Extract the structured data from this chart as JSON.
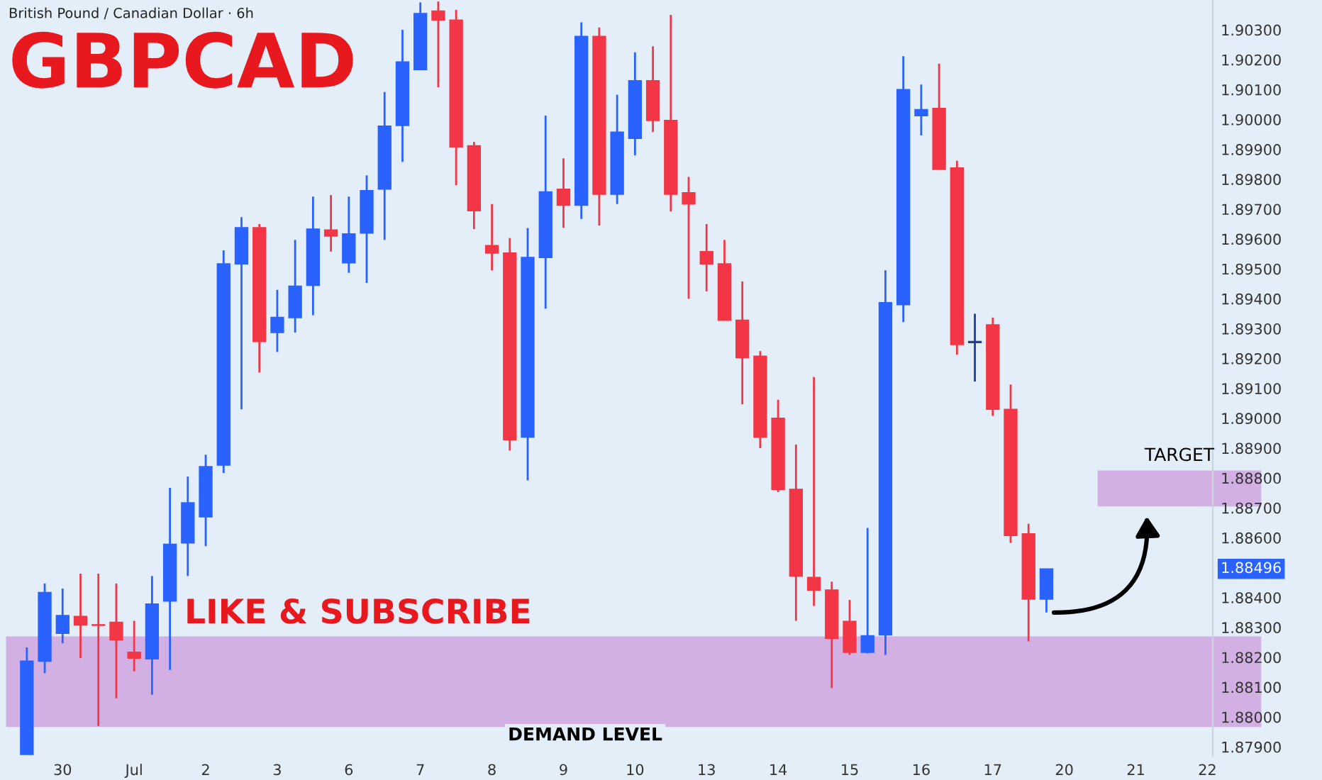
{
  "chart_data": {
    "type": "candlestick",
    "title": "GBPCAD",
    "subtitle": "British Pound / Canadian Dollar · 6h",
    "categories": [
      null,
      null,
      "30",
      null,
      null,
      null,
      "Jul",
      null,
      null,
      null,
      "2",
      null,
      null,
      null,
      "3",
      null,
      null,
      null,
      "6",
      null,
      null,
      null,
      "7",
      null,
      null,
      null,
      "8",
      null,
      null,
      null,
      "9",
      null,
      null,
      null,
      "10",
      null,
      null,
      null,
      "13",
      null,
      null,
      null,
      "14",
      null,
      null,
      null,
      "15",
      null,
      null,
      null,
      "16",
      null,
      null,
      null,
      "17",
      null,
      null,
      null,
      "20",
      null,
      null,
      null,
      "21",
      null,
      null,
      null,
      "22"
    ],
    "ohlc": [
      [
        1.87875,
        1.88233,
        1.87875,
        1.88187
      ],
      [
        1.88187,
        1.88447,
        1.88147,
        1.88417
      ],
      [
        1.8828,
        1.8843,
        1.88247,
        1.8834
      ],
      [
        1.88337,
        1.8848,
        1.88197,
        1.88308
      ],
      [
        1.88308,
        1.8848,
        1.8797,
        1.88307
      ],
      [
        1.88317,
        1.88447,
        1.88063,
        1.88258
      ],
      [
        1.88217,
        1.88322,
        1.88153,
        1.88197
      ],
      [
        1.88195,
        1.88472,
        1.88075,
        1.88378
      ],
      [
        1.88388,
        1.88767,
        1.88158,
        1.88578
      ],
      [
        1.88583,
        1.88805,
        1.88472,
        1.88717
      ],
      [
        1.8867,
        1.88878,
        1.88572,
        1.88838
      ],
      [
        1.88843,
        1.89562,
        1.88817,
        1.89517
      ],
      [
        1.89517,
        1.89673,
        1.8903,
        1.89638
      ],
      [
        1.89638,
        1.8965,
        1.89153,
        1.89257
      ],
      [
        1.89287,
        1.8943,
        1.89222,
        1.89338
      ],
      [
        1.89337,
        1.89597,
        1.89287,
        1.89442
      ],
      [
        1.89445,
        1.89742,
        1.89345,
        1.89633
      ],
      [
        1.8963,
        1.89747,
        1.89558,
        1.8961
      ],
      [
        1.8952,
        1.89742,
        1.89487,
        1.89617
      ],
      [
        1.8962,
        1.89813,
        1.89453,
        1.89762
      ],
      [
        1.89767,
        1.90092,
        1.89597,
        1.89978
      ],
      [
        1.8998,
        1.903,
        1.89858,
        1.90193
      ],
      [
        1.90167,
        1.90392,
        1.90167,
        1.90355
      ],
      [
        1.90363,
        1.90395,
        1.90108,
        1.90333
      ],
      [
        1.90333,
        1.90367,
        1.8978,
        1.89908
      ],
      [
        1.89912,
        1.89925,
        1.89633,
        1.89695
      ],
      [
        1.89578,
        1.89717,
        1.89495,
        1.89553
      ],
      [
        1.89553,
        1.89603,
        1.88892,
        1.88928
      ],
      [
        1.88937,
        1.89637,
        1.88792,
        1.89538
      ],
      [
        1.89538,
        1.90013,
        1.89367,
        1.89758
      ],
      [
        1.89767,
        1.8987,
        1.89638,
        1.89713
      ],
      [
        1.89713,
        1.90325,
        1.89667,
        1.90278
      ],
      [
        1.90278,
        1.90308,
        1.89645,
        1.8975
      ],
      [
        1.8975,
        1.90083,
        1.89717,
        1.89958
      ],
      [
        1.89937,
        1.90225,
        1.8988,
        1.9013
      ],
      [
        1.9013,
        1.90245,
        1.89958,
        1.89997
      ],
      [
        1.89997,
        1.9035,
        1.89692,
        1.8975
      ],
      [
        1.89755,
        1.89808,
        1.894,
        1.89717
      ],
      [
        1.89558,
        1.8965,
        1.89425,
        1.89517
      ],
      [
        1.89517,
        1.89597,
        1.89328,
        1.89328
      ],
      [
        1.89328,
        1.89458,
        1.89047,
        1.89203
      ],
      [
        1.89208,
        1.89225,
        1.889,
        1.88937
      ],
      [
        1.89,
        1.89062,
        1.88753,
        1.88762
      ],
      [
        1.88762,
        1.88912,
        1.88322,
        1.88472
      ],
      [
        1.88467,
        1.89138,
        1.88372,
        1.88425
      ],
      [
        1.88425,
        1.88453,
        1.88097,
        1.88263
      ],
      [
        1.8832,
        1.88392,
        1.88208,
        1.88217
      ],
      [
        1.88217,
        1.88633,
        1.88213,
        1.88272
      ],
      [
        1.88275,
        1.89495,
        1.88208,
        1.89387
      ],
      [
        1.8938,
        1.90212,
        1.89322,
        1.901
      ],
      [
        1.90013,
        1.90117,
        1.89947,
        1.90033
      ],
      [
        1.90037,
        1.90187,
        1.89833,
        1.89833
      ],
      [
        1.89838,
        1.89862,
        1.89213,
        1.89247
      ],
      [
        1.89253,
        1.8935,
        1.89123,
        1.89257
      ],
      [
        1.89313,
        1.89337,
        1.89008,
        1.8903
      ],
      [
        1.8903,
        1.89113,
        1.88583,
        1.88608
      ],
      [
        1.88613,
        1.88647,
        1.88253,
        1.88395
      ],
      [
        1.88395,
        1.88496,
        1.8835,
        1.88496
      ],
      null,
      null,
      null,
      null,
      null,
      null,
      null,
      null,
      null
    ],
    "colors": [
      "#2962ff",
      "#2962ff",
      "#2962ff",
      "#f23645",
      "#f23645",
      "#f23645",
      "#f23645",
      "#2962ff",
      "#2962ff",
      "#2962ff",
      "#2962ff",
      "#2962ff",
      "#2962ff",
      "#f23645",
      "#2962ff",
      "#2962ff",
      "#2962ff",
      "#f23645",
      "#2962ff",
      "#2962ff",
      "#2962ff",
      "#2962ff",
      "#2962ff",
      "#f23645",
      "#f23645",
      "#f23645",
      "#f23645",
      "#f23645",
      "#2962ff",
      "#2962ff",
      "#f23645",
      "#2962ff",
      "#f23645",
      "#2962ff",
      "#2962ff",
      "#f23645",
      "#f23645",
      "#f23645",
      "#f23645",
      "#f23645",
      "#f23645",
      "#f23645",
      "#f23645",
      "#f23645",
      "#f23645",
      "#f23645",
      "#f23645",
      "#2962ff",
      "#2962ff",
      "#2962ff",
      "#2962ff",
      "#f23645",
      "#f23645",
      "#1e3f9e",
      "#f23645",
      "#f23645",
      "#f23645",
      "#2962ff",
      null,
      null,
      null,
      null,
      null,
      null,
      null,
      null,
      null
    ],
    "ylim": [
      1.8787,
      1.904
    ],
    "yticks": [
      {
        "value": 1.903,
        "label": "1.90300"
      },
      {
        "value": 1.902,
        "label": "1.90200"
      },
      {
        "value": 1.901,
        "label": "1.90100"
      },
      {
        "value": 1.9,
        "label": "1.90000"
      },
      {
        "value": 1.899,
        "label": "1.89900"
      },
      {
        "value": 1.898,
        "label": "1.89800"
      },
      {
        "value": 1.897,
        "label": "1.89700"
      },
      {
        "value": 1.896,
        "label": "1.89600"
      },
      {
        "value": 1.895,
        "label": "1.89500"
      },
      {
        "value": 1.894,
        "label": "1.89400"
      },
      {
        "value": 1.893,
        "label": "1.89300"
      },
      {
        "value": 1.892,
        "label": "1.89200"
      },
      {
        "value": 1.891,
        "label": "1.89100"
      },
      {
        "value": 1.89,
        "label": "1.89000"
      },
      {
        "value": 1.889,
        "label": "1.88900"
      },
      {
        "value": 1.888,
        "label": "1.88800"
      },
      {
        "value": 1.887,
        "label": "1.88700"
      },
      {
        "value": 1.886,
        "label": "1.88600"
      },
      {
        "value": 1.884,
        "label": "1.88400"
      },
      {
        "value": 1.883,
        "label": "1.88300"
      },
      {
        "value": 1.882,
        "label": "1.88200"
      },
      {
        "value": 1.881,
        "label": "1.88100"
      },
      {
        "value": 1.88,
        "label": "1.88000"
      },
      {
        "value": 1.879,
        "label": "1.87900"
      }
    ],
    "bands": [
      {
        "axis": "y",
        "from": 1.87967,
        "to": 1.8827,
        "label": "DEMAND LEVEL",
        "color": "#cfa9e1"
      },
      {
        "axis": "y",
        "from": 1.88705,
        "to": 1.88825,
        "label": "TARGET",
        "color": "#cfa9e1"
      }
    ],
    "annotations": [
      "LIKE & SUBSCRIBE",
      "1.88496"
    ],
    "grid": false
  }
}
